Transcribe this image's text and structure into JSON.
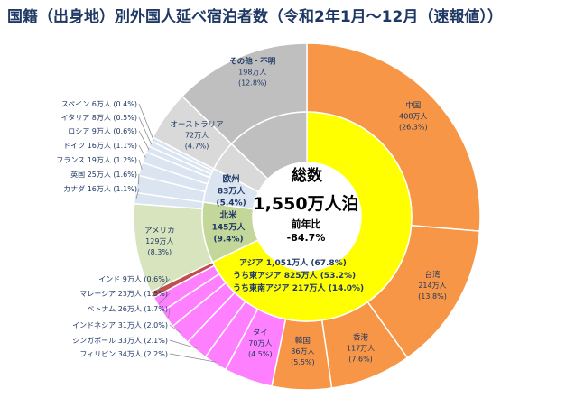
{
  "chart_data": {
    "type": "pie",
    "title": "国籍（出身地）別外国人延べ宿泊者数（令和2年1月〜12月（速報値））",
    "center": {
      "label": "総数",
      "total": "1,550万人泊",
      "prev_label": "前年比",
      "prev_value": "-84.7%"
    },
    "outer_ring": [
      {
        "name": "中国",
        "value": 408,
        "value_label": "408万人",
        "pct_label": "(26.3%)",
        "color": "#f79646"
      },
      {
        "name": "台湾",
        "value": 214,
        "value_label": "214万人",
        "pct_label": "(13.8%)",
        "color": "#f79646"
      },
      {
        "name": "香港",
        "value": 117,
        "value_label": "117万人",
        "pct_label": "(7.6%)",
        "color": "#f79646"
      },
      {
        "name": "韓国",
        "value": 86,
        "value_label": "86万人",
        "pct_label": "(5.5%)",
        "color": "#f79646"
      },
      {
        "name": "タイ",
        "value": 70,
        "value_label": "70万人",
        "pct_label": "(4.5%)",
        "color": "#ff80ff"
      },
      {
        "name": "フィリピン",
        "value": 34,
        "value_label": "34万人",
        "pct_label": "(2.2%)",
        "color": "#ff80ff"
      },
      {
        "name": "シンガポール",
        "value": 33,
        "value_label": "33万人",
        "pct_label": "(2.1%)",
        "color": "#ff80ff"
      },
      {
        "name": "インドネシア",
        "value": 31,
        "value_label": "31万人",
        "pct_label": "(2.0%)",
        "color": "#ff80ff"
      },
      {
        "name": "ベトナム",
        "value": 26,
        "value_label": "26万人",
        "pct_label": "(1.7%)",
        "color": "#ff80ff"
      },
      {
        "name": "マレーシア",
        "value": 23,
        "value_label": "23万人",
        "pct_label": "(1.5%)",
        "color": "#ff80ff"
      },
      {
        "name": "インド",
        "value": 9,
        "value_label": "9万人",
        "pct_label": "(0.6%)",
        "color": "#c0504d"
      },
      {
        "name": "アメリカ",
        "value": 129,
        "value_label": "129万人",
        "pct_label": "(8.3%)",
        "color": "#d7e4bd"
      },
      {
        "name": "カナダ",
        "value": 16,
        "value_label": "16万人",
        "pct_label": "(1.1%)",
        "color": "#dbe5f1"
      },
      {
        "name": "英国",
        "value": 25,
        "value_label": "25万人",
        "pct_label": "(1.6%)",
        "color": "#dbe5f1"
      },
      {
        "name": "フランス",
        "value": 19,
        "value_label": "19万人",
        "pct_label": "(1.2%)",
        "color": "#dbe5f1"
      },
      {
        "name": "ドイツ",
        "value": 16,
        "value_label": "16万人",
        "pct_label": "(1.1%)",
        "color": "#dbe5f1"
      },
      {
        "name": "ロシア",
        "value": 9,
        "value_label": "9万人",
        "pct_label": "(0.6%)",
        "color": "#dbe5f1"
      },
      {
        "name": "イタリア",
        "value": 8,
        "value_label": "8万人",
        "pct_label": "(0.5%)",
        "color": "#dbe5f1"
      },
      {
        "name": "スペイン",
        "value": 6,
        "value_label": "6万人",
        "pct_label": "(0.4%)",
        "color": "#dbe5f1"
      },
      {
        "name": "オーストラリア",
        "value": 72,
        "value_label": "72万人",
        "pct_label": "(4.7%)",
        "color": "#d9d9d9"
      },
      {
        "name": "その他・不明",
        "value": 198,
        "value_label": "198万人",
        "pct_label": "(12.8%)",
        "color": "#bfbfbf"
      }
    ],
    "inner_ring": [
      {
        "name": "アジア",
        "value": 1051,
        "value_label": "1,051万人",
        "pct_label": "(67.8%)",
        "color": "#ffff00"
      },
      {
        "name": "北米",
        "value": 145,
        "value_label": "145万人",
        "pct_label": "(9.4%)",
        "color": "#c4d79b"
      },
      {
        "name": "欧州",
        "value": 83,
        "value_label": "83万人",
        "pct_label": "(5.4%)",
        "color": "#dbe5f1"
      },
      {
        "name": "オーストラリア",
        "value": 72,
        "color": "#d9d9d9"
      },
      {
        "name": "その他・不明",
        "value": 198,
        "color": "#bfbfbf"
      }
    ],
    "asia_labels": [
      "アジア 1,051万人 (67.8%)",
      "うち東アジア 825万人 (53.2%)",
      "うち東南アジア 217万人 (14.0%)"
    ]
  }
}
